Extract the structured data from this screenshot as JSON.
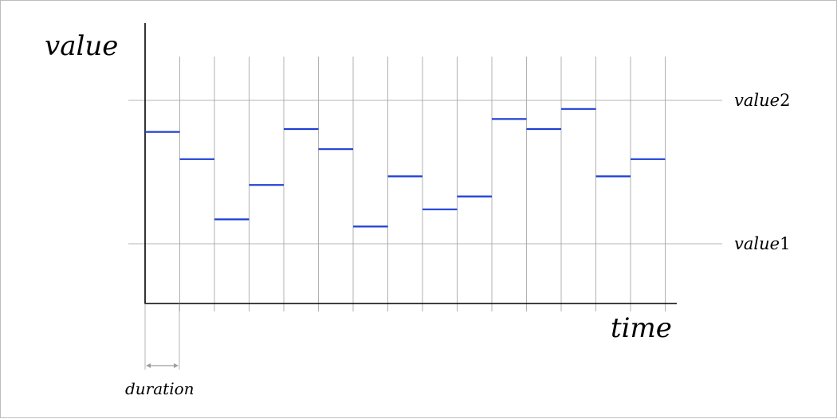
{
  "diagram": {
    "axis_y_label": "value",
    "axis_x_label": "time",
    "duration_label": "duration",
    "ref_lines": [
      {
        "name": "value2",
        "level": 1.0,
        "label_base": "value",
        "label_num": "2"
      },
      {
        "name": "value1",
        "level": 0.0,
        "label_base": "value",
        "label_num": "1"
      }
    ],
    "step_values": [
      0.78,
      0.59,
      0.17,
      0.41,
      0.8,
      0.66,
      0.12,
      0.47,
      0.24,
      0.33,
      0.87,
      0.8,
      0.94,
      0.47,
      0.59
    ],
    "colors": {
      "step": "#1f3fd6",
      "grid": "#9e9e9e",
      "axis": "#000000",
      "duration_arrow": "#9e9e9e"
    }
  }
}
